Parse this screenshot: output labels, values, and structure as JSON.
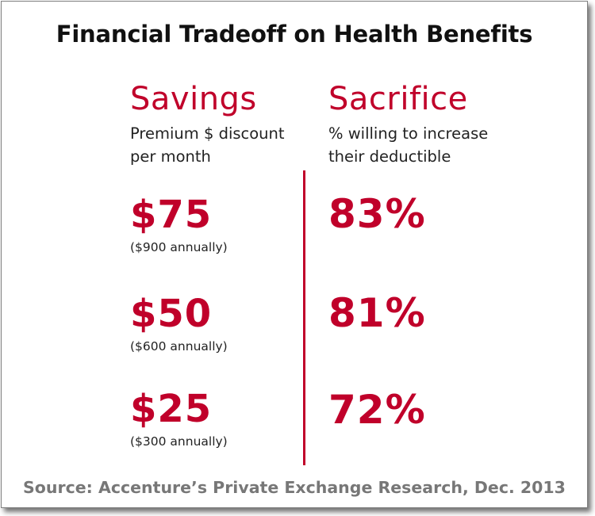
{
  "title": "Financial Tradeoff on Health Benefits",
  "savings": {
    "heading": "Savings",
    "sub_line1": "Premium $ discount",
    "sub_line2": "per month"
  },
  "sacrifice": {
    "heading": "Sacrifice",
    "sub_line1": "% willing to increase",
    "sub_line2": "their deductible"
  },
  "rows": [
    {
      "amount": "$75",
      "annual": "($900 annually)",
      "percent": "83%"
    },
    {
      "amount": "$50",
      "annual": "($600 annually)",
      "percent": "81%"
    },
    {
      "amount": "$25",
      "annual": "($300 annually)",
      "percent": "72%"
    }
  ],
  "source": "Source: Accenture’s Private Exchange Research, Dec. 2013",
  "colors": {
    "accent": "#c0002a",
    "text": "#222222",
    "source": "#777777"
  }
}
